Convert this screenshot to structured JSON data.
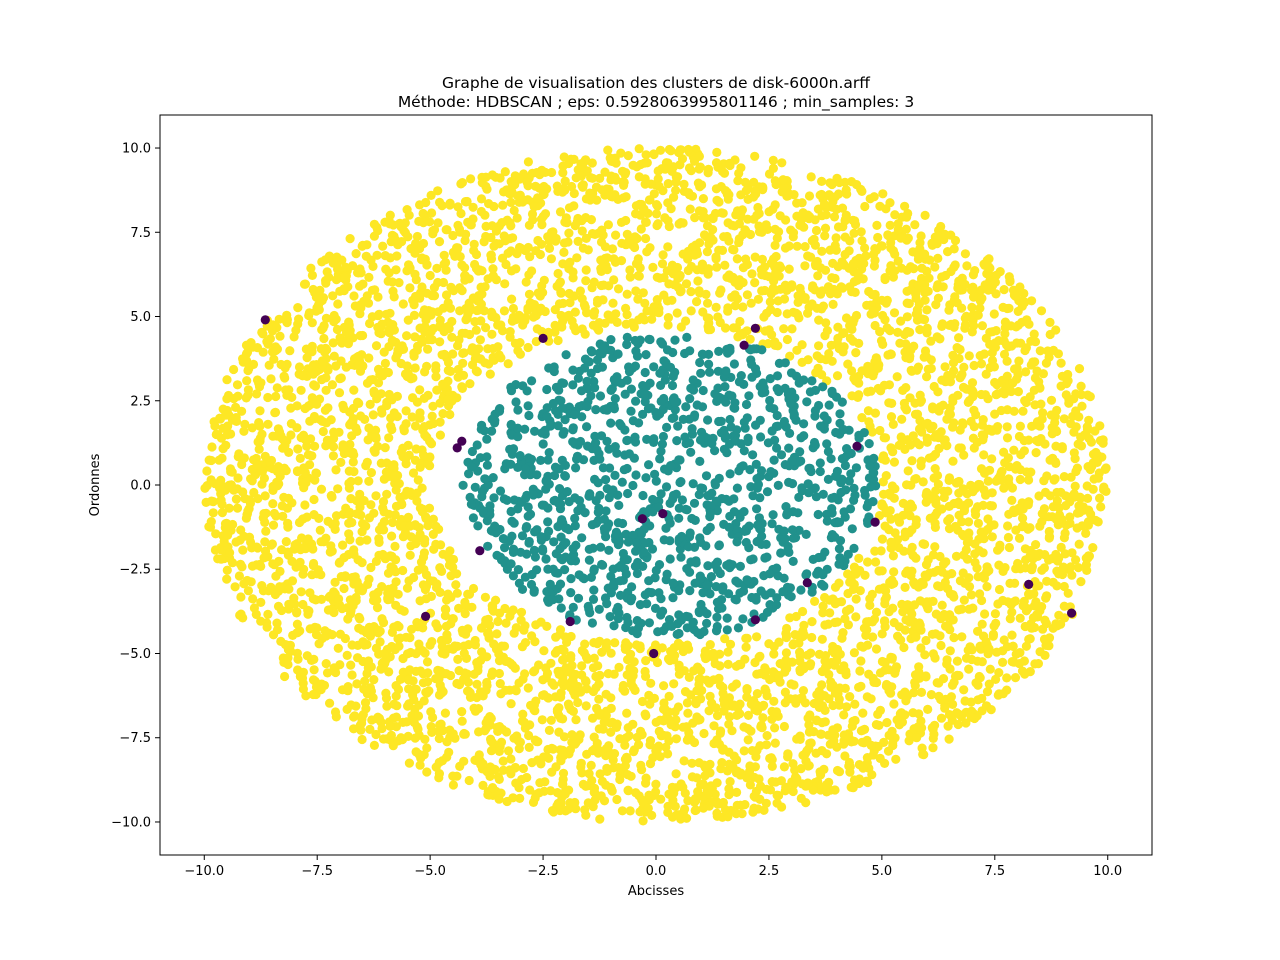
{
  "chart_data": {
    "type": "scatter",
    "title": "Graphe de visualisation des clusters de disk-6000n.arff",
    "subtitle": "Méthode: HDBSCAN ; eps: 0.5928063995801146 ; min_samples: 3",
    "xlabel": "Abcisses",
    "ylabel": "Ordonnes",
    "xlim": [
      -10.98,
      10.98
    ],
    "ylim": [
      -10.98,
      10.98
    ],
    "xticks": [
      "−10.0",
      "−7.5",
      "−5.0",
      "−2.5",
      "0.0",
      "2.5",
      "5.0",
      "7.5",
      "10.0"
    ],
    "xtick_values": [
      -10,
      -7.5,
      -5,
      -2.5,
      0,
      2.5,
      5,
      7.5,
      10
    ],
    "yticks": [
      "−10.0",
      "−7.5",
      "−5.0",
      "−2.5",
      "0.0",
      "2.5",
      "5.0",
      "7.5",
      "10.0"
    ],
    "ytick_values": [
      -10,
      -7.5,
      -5,
      -2.5,
      0,
      2.5,
      5,
      7.5,
      10
    ],
    "grid": false,
    "legend": "none",
    "clusters": [
      {
        "label": "outer-ring",
        "color": "#fde725",
        "shape": "annulus",
        "center": [
          0,
          0
        ],
        "inner_radius_x": 5.0,
        "inner_radius_y": 4.7,
        "outer_radius_x": 10.0,
        "outer_radius_y": 10.0,
        "approx_count": 4800
      },
      {
        "label": "inner-disk",
        "color": "#21918c",
        "shape": "disk",
        "center": [
          0.3,
          0
        ],
        "radius_x": 4.6,
        "radius_y": 4.5,
        "approx_count": 1150
      }
    ],
    "noise": {
      "label": "noise",
      "color": "#440154",
      "points": [
        [
          -8.65,
          4.9
        ],
        [
          -2.5,
          4.35
        ],
        [
          2.2,
          4.65
        ],
        [
          1.95,
          4.15
        ],
        [
          -4.3,
          1.3
        ],
        [
          -4.4,
          1.1
        ],
        [
          4.45,
          1.15
        ],
        [
          -0.3,
          -1.0
        ],
        [
          0.15,
          -0.85
        ],
        [
          4.85,
          -1.1
        ],
        [
          -3.9,
          -1.95
        ],
        [
          3.35,
          -2.9
        ],
        [
          8.25,
          -2.95
        ],
        [
          9.2,
          -3.8
        ],
        [
          -5.1,
          -3.9
        ],
        [
          -1.9,
          -4.05
        ],
        [
          2.2,
          -4.0
        ],
        [
          -0.05,
          -5.0
        ]
      ]
    }
  }
}
